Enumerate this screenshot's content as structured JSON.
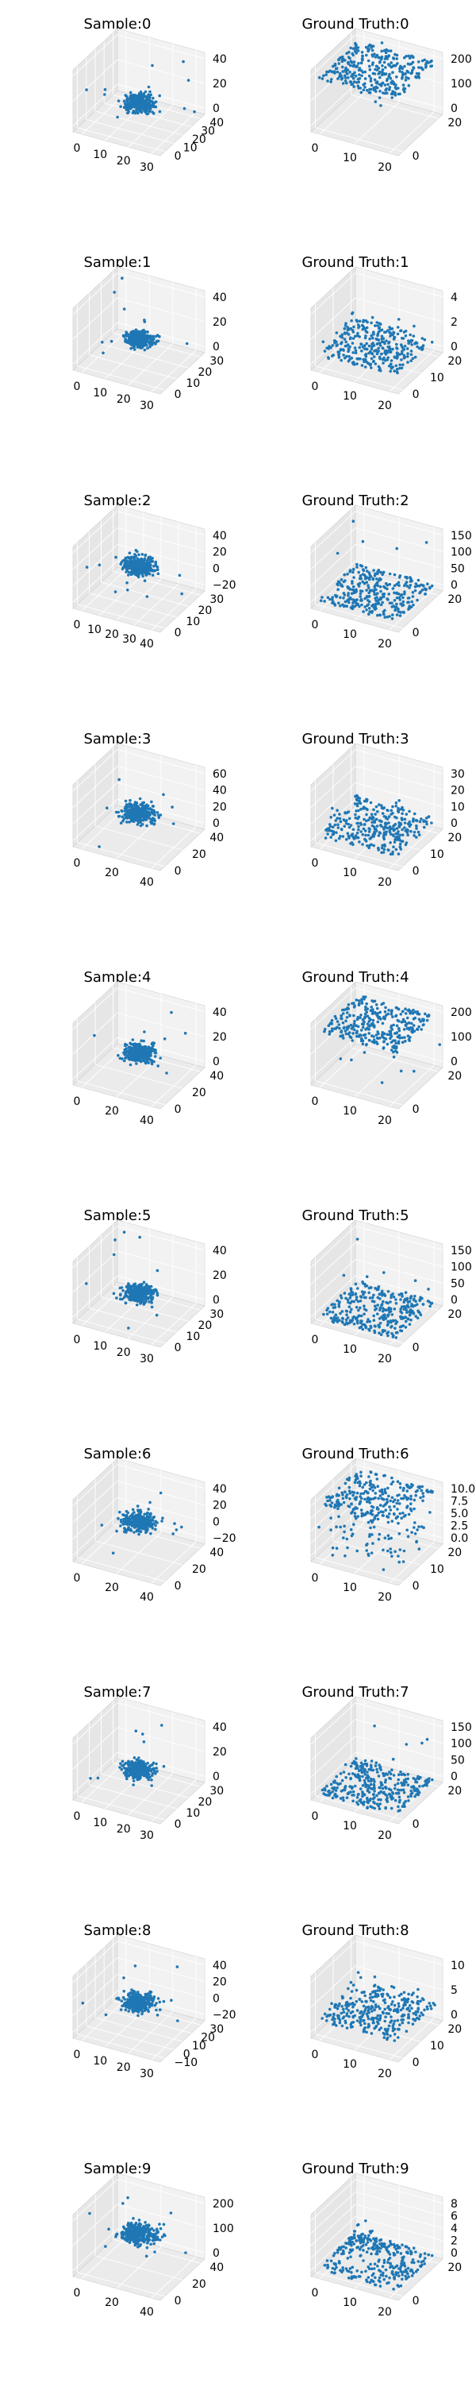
{
  "chart_data": [
    {
      "type": "scatter",
      "projection": "3d",
      "title": "Sample:0",
      "xticks": [
        "0",
        "10",
        "20",
        "30"
      ],
      "yticks": [
        "0",
        "10",
        "20",
        "30",
        "40"
      ],
      "zticks": [
        "0",
        "20",
        "40"
      ],
      "grid": true,
      "color": "#1f77b4",
      "shape": "blob",
      "zcenter": 0.32,
      "spread": 0.5,
      "outliers": true
    },
    {
      "type": "scatter",
      "projection": "3d",
      "title": "Ground Truth:0",
      "xticks": [
        "0",
        "10",
        "20"
      ],
      "yticks": [
        "0",
        "20"
      ],
      "zticks": [
        "0",
        "100",
        "200"
      ],
      "grid": true,
      "color": "#1f77b4",
      "shape": "plane",
      "zlevel": 0.85,
      "outliers": true
    },
    {
      "type": "scatter",
      "projection": "3d",
      "title": "Sample:1",
      "xticks": [
        "0",
        "10",
        "20",
        "30"
      ],
      "yticks": [
        "0",
        "10",
        "20",
        "30"
      ],
      "zticks": [
        "0",
        "20",
        "40"
      ],
      "grid": true,
      "color": "#1f77b4",
      "shape": "blob",
      "zcenter": 0.35,
      "spread": 0.45,
      "outliers": true
    },
    {
      "type": "scatter",
      "projection": "3d",
      "title": "Ground Truth:1",
      "xticks": [
        "0",
        "10",
        "20"
      ],
      "yticks": [
        "0",
        "10",
        "20"
      ],
      "zticks": [
        "0",
        "2",
        "4"
      ],
      "grid": true,
      "color": "#1f77b4",
      "shape": "terrain",
      "zlevel": 0.2,
      "outliers": false
    },
    {
      "type": "scatter",
      "projection": "3d",
      "title": "Sample:2",
      "xticks": [
        "0",
        "10",
        "20",
        "30",
        "40"
      ],
      "yticks": [
        "0",
        "10",
        "20",
        "30"
      ],
      "zticks": [
        "−20",
        "0",
        "20",
        "40"
      ],
      "grid": true,
      "color": "#1f77b4",
      "shape": "blob",
      "zcenter": 0.55,
      "spread": 0.5,
      "outliers": true
    },
    {
      "type": "scatter",
      "projection": "3d",
      "title": "Ground Truth:2",
      "xticks": [
        "0",
        "10",
        "20"
      ],
      "yticks": [
        "0",
        "20"
      ],
      "zticks": [
        "0",
        "50",
        "100",
        "150"
      ],
      "grid": true,
      "color": "#1f77b4",
      "shape": "plane",
      "zlevel": 0.12,
      "outliers": true
    },
    {
      "type": "scatter",
      "projection": "3d",
      "title": "Sample:3",
      "xticks": [
        "0",
        "20",
        "40"
      ],
      "yticks": [
        "0",
        "20",
        "40"
      ],
      "zticks": [
        "0",
        "20",
        "40",
        "60"
      ],
      "grid": true,
      "color": "#1f77b4",
      "shape": "blob",
      "zcenter": 0.4,
      "spread": 0.55,
      "outliers": true
    },
    {
      "type": "scatter",
      "projection": "3d",
      "title": "Ground Truth:3",
      "xticks": [
        "0",
        "10",
        "20"
      ],
      "yticks": [
        "0",
        "10",
        "20"
      ],
      "zticks": [
        "0",
        "10",
        "20",
        "30"
      ],
      "grid": true,
      "color": "#1f77b4",
      "shape": "terrain",
      "zlevel": 0.15,
      "outliers": false
    },
    {
      "type": "scatter",
      "projection": "3d",
      "title": "Sample:4",
      "xticks": [
        "0",
        "20",
        "40"
      ],
      "yticks": [
        "0",
        "20",
        "40"
      ],
      "zticks": [
        "0",
        "20",
        "40"
      ],
      "grid": true,
      "color": "#1f77b4",
      "shape": "blob",
      "zcenter": 0.38,
      "spread": 0.5,
      "outliers": true
    },
    {
      "type": "scatter",
      "projection": "3d",
      "title": "Ground Truth:4",
      "xticks": [
        "0",
        "10",
        "20"
      ],
      "yticks": [
        "0",
        "20"
      ],
      "zticks": [
        "0",
        "100",
        "200"
      ],
      "grid": true,
      "color": "#1f77b4",
      "shape": "plane",
      "zlevel": 0.85,
      "outliers": true
    },
    {
      "type": "scatter",
      "projection": "3d",
      "title": "Sample:5",
      "xticks": [
        "0",
        "10",
        "20",
        "30"
      ],
      "yticks": [
        "0",
        "10",
        "20",
        "30"
      ],
      "zticks": [
        "0",
        "20",
        "40"
      ],
      "grid": true,
      "color": "#1f77b4",
      "shape": "blob",
      "zcenter": 0.35,
      "spread": 0.5,
      "outliers": true
    },
    {
      "type": "scatter",
      "projection": "3d",
      "title": "Ground Truth:5",
      "xticks": [
        "0",
        "10",
        "20"
      ],
      "yticks": [
        "0",
        "20"
      ],
      "zticks": [
        "0",
        "50",
        "100",
        "150"
      ],
      "grid": true,
      "color": "#1f77b4",
      "shape": "plane",
      "zlevel": 0.08,
      "outliers": true
    },
    {
      "type": "scatter",
      "projection": "3d",
      "title": "Sample:6",
      "xticks": [
        "0",
        "20",
        "40"
      ],
      "yticks": [
        "0",
        "20",
        "40"
      ],
      "zticks": [
        "−20",
        "0",
        "20",
        "40"
      ],
      "grid": true,
      "color": "#1f77b4",
      "shape": "blob",
      "zcenter": 0.5,
      "spread": 0.55,
      "outliers": true
    },
    {
      "type": "scatter",
      "projection": "3d",
      "title": "Ground Truth:6",
      "xticks": [
        "0",
        "10",
        "20"
      ],
      "yticks": [
        "0",
        "10",
        "20"
      ],
      "zticks": [
        "0.0",
        "2.5",
        "5.0",
        "7.5",
        "10.0"
      ],
      "grid": true,
      "color": "#1f77b4",
      "shape": "split",
      "zlevel": 0.9,
      "outliers": true
    },
    {
      "type": "scatter",
      "projection": "3d",
      "title": "Sample:7",
      "xticks": [
        "0",
        "10",
        "20",
        "30"
      ],
      "yticks": [
        "0",
        "10",
        "20",
        "30"
      ],
      "zticks": [
        "0",
        "20",
        "40"
      ],
      "grid": true,
      "color": "#1f77b4",
      "shape": "blob",
      "zcenter": 0.35,
      "spread": 0.5,
      "outliers": true
    },
    {
      "type": "scatter",
      "projection": "3d",
      "title": "Ground Truth:7",
      "xticks": [
        "0",
        "10",
        "20"
      ],
      "yticks": [
        "0",
        "20"
      ],
      "zticks": [
        "0",
        "50",
        "100",
        "150"
      ],
      "grid": true,
      "color": "#1f77b4",
      "shape": "plane",
      "zlevel": 0.08,
      "outliers": true
    },
    {
      "type": "scatter",
      "projection": "3d",
      "title": "Sample:8",
      "xticks": [
        "0",
        "10",
        "20",
        "30"
      ],
      "yticks": [
        "−10",
        "0",
        "10",
        "20",
        "30"
      ],
      "zticks": [
        "−20",
        "0",
        "20",
        "40"
      ],
      "grid": true,
      "color": "#1f77b4",
      "shape": "blob",
      "zcenter": 0.45,
      "spread": 0.5,
      "outliers": true
    },
    {
      "type": "scatter",
      "projection": "3d",
      "title": "Ground Truth:8",
      "xticks": [
        "0",
        "10",
        "20"
      ],
      "yticks": [
        "0",
        "10",
        "20"
      ],
      "zticks": [
        "0",
        "5",
        "10"
      ],
      "grid": true,
      "color": "#1f77b4",
      "shape": "terrain",
      "zlevel": 0.25,
      "outliers": false
    },
    {
      "type": "scatter",
      "projection": "3d",
      "title": "Sample:9",
      "xticks": [
        "0",
        "20",
        "40"
      ],
      "yticks": [
        "0",
        "20",
        "40"
      ],
      "zticks": [
        "0",
        "100",
        "200"
      ],
      "grid": true,
      "color": "#1f77b4",
      "shape": "blob",
      "zcenter": 0.55,
      "spread": 0.6,
      "outliers": true
    },
    {
      "type": "scatter",
      "projection": "3d",
      "title": "Ground Truth:9",
      "xticks": [
        "0",
        "10",
        "20"
      ],
      "yticks": [
        "0",
        "20"
      ],
      "zticks": [
        "0",
        "2",
        "4",
        "6",
        "8"
      ],
      "grid": true,
      "color": "#1f77b4",
      "shape": "peak",
      "zlevel": 0.1,
      "outliers": false
    }
  ]
}
